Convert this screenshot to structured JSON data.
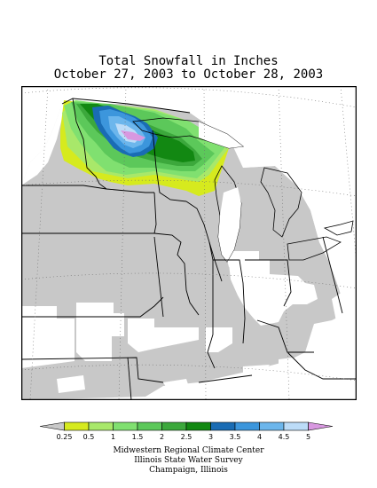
{
  "header": {
    "title": "Total Snowfall in Inches",
    "subtitle": "October 27, 2003 to October 28, 2003"
  },
  "legend": {
    "labels": [
      "0.25",
      "0.5",
      "1",
      "1.5",
      "2",
      "2.5",
      "3",
      "3.5",
      "4",
      "4.5",
      "5"
    ],
    "colors": [
      "#c8c8c8",
      "#d6ea1e",
      "#a8e86a",
      "#80e070",
      "#5cc85a",
      "#3ca83c",
      "#128812",
      "#1a6cb4",
      "#3c96dc",
      "#6cb6ec",
      "#bcdcf8",
      "#d898e0"
    ]
  },
  "credits": [
    "Midwestern Regional Climate Center",
    "Illinois State Water Survey",
    "Champaign, Illinois"
  ],
  "map": {
    "colors": {
      "trace": "#c8c8c8",
      "none": "#ffffff",
      "boundary": "#000000",
      "graticule": "#6e6e6e"
    }
  }
}
